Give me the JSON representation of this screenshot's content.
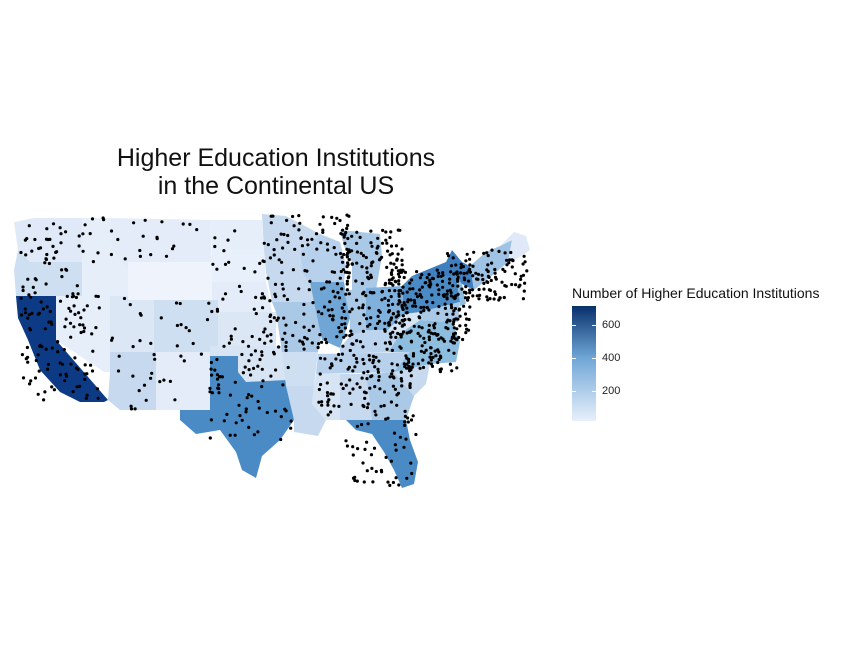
{
  "title_line1": "Higher Education Institutions",
  "title_line2": "in the Continental US",
  "legend": {
    "title": "Number of Higher Education Institutions",
    "ticks": [
      "200",
      "400",
      "600"
    ],
    "color_low": "#e8f0fb",
    "color_high": "#08306b"
  }
}
